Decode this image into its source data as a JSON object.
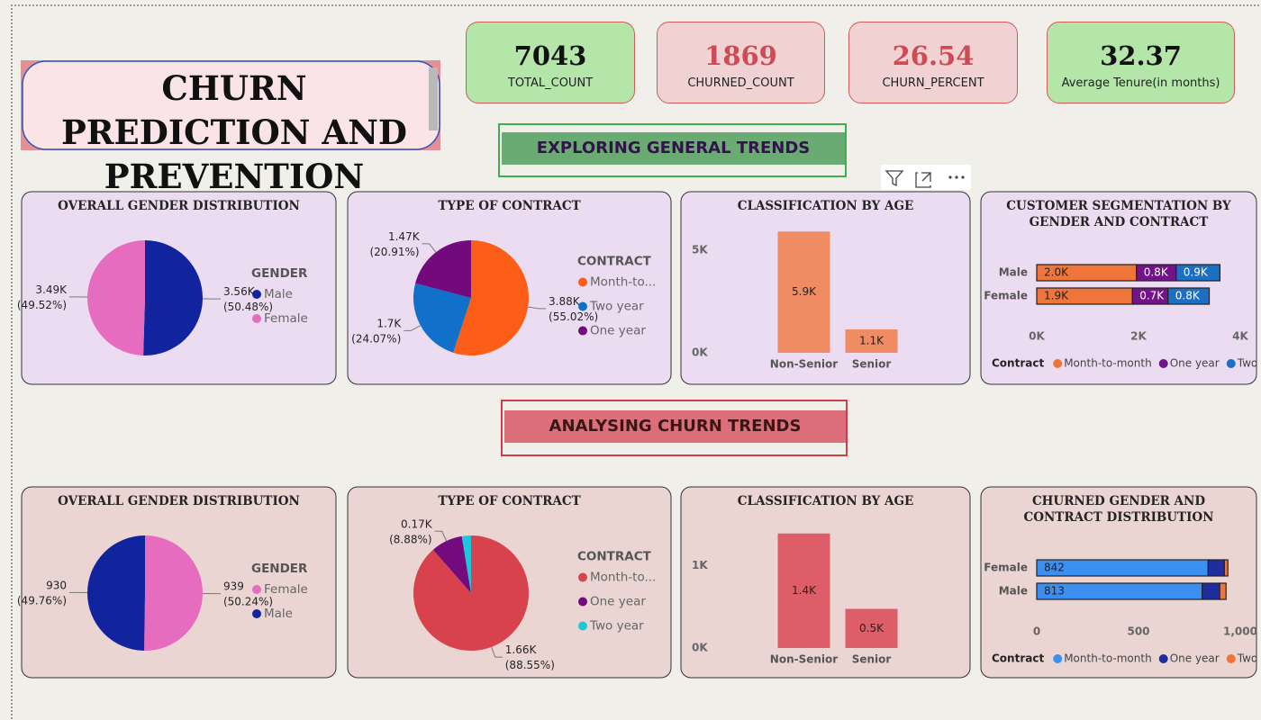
{
  "header": {
    "title": "CHURN PREDICTION AND PREVENTION"
  },
  "kpis": [
    {
      "value": 7043,
      "label": "TOTAL_COUNT"
    },
    {
      "value": 1869,
      "label": "CHURNED_COUNT"
    },
    {
      "value": 26.54,
      "label": "CHURN_PERCENT"
    },
    {
      "value": 32.37,
      "label": "Average Tenure(in months)"
    }
  ],
  "sections": [
    "EXPLORING GENERAL TRENDS",
    "ANALYSING CHURN TRENDS"
  ],
  "chart_data": [
    {
      "type": "pie",
      "title": "OVERALL GENDER DISTRIBUTION",
      "legend_title": "GENDER",
      "categories": [
        "Male",
        "Female"
      ],
      "values": [
        3555,
        3488
      ],
      "colors": [
        "#12239e",
        "#e66cbf"
      ],
      "value_labels": [
        "3.56K (50.48%)",
        "3.49K (49.52%)"
      ]
    },
    {
      "type": "pie",
      "title": "TYPE OF CONTRACT",
      "legend_title": "CONTRACT",
      "categories": [
        "Month-to...",
        "Two year",
        "One year"
      ],
      "values": [
        3875,
        1695,
        1473
      ],
      "colors": [
        "#fc5d17",
        "#1170c9",
        "#720a7e"
      ],
      "value_labels": [
        "3.88K (55.02%)",
        "1.7K (24.07%)",
        "1.47K (20.91%)"
      ]
    },
    {
      "type": "bar",
      "title": "CLASSIFICATION BY AGE",
      "categories": [
        "Non-Senior",
        "Senior"
      ],
      "values": [
        5901,
        1142
      ],
      "value_labels": [
        "5.9K",
        "1.1K"
      ],
      "color": "#ef8c63",
      "ylim": [
        0,
        6000
      ],
      "yticks": [
        {
          "value": 0,
          "label": "0K"
        },
        {
          "value": 5000,
          "label": "5K"
        }
      ]
    },
    {
      "type": "bar",
      "orientation": "horizontal",
      "stacked": true,
      "title": "CUSTOMER SEGMENTATION BY GENDER AND CONTRACT",
      "legend_title": "Contract",
      "categories": [
        "Male",
        "Female"
      ],
      "series": [
        {
          "name": "Month-to-month",
          "color": "#f0753b",
          "values": [
            1960,
            1880
          ],
          "value_labels": [
            "2.0K",
            "1.9K"
          ]
        },
        {
          "name": "One year",
          "color": "#73138a",
          "values": [
            780,
            700
          ],
          "value_labels": [
            "0.8K",
            "0.7K"
          ]
        },
        {
          "name": "Two year",
          "color": "#1d6fc4",
          "values": [
            860,
            810
          ],
          "value_labels": [
            "0.9K",
            "0.8K"
          ]
        }
      ],
      "xlim": [
        0,
        4000
      ],
      "xticks": [
        {
          "value": 0,
          "label": "0K"
        },
        {
          "value": 2000,
          "label": "2K"
        },
        {
          "value": 4000,
          "label": "4K"
        }
      ]
    },
    {
      "type": "pie",
      "title": "OVERALL GENDER DISTRIBUTION",
      "legend_title": "GENDER",
      "categories": [
        "Female",
        "Male"
      ],
      "values": [
        939,
        930
      ],
      "colors": [
        "#e66cbf",
        "#12239e"
      ],
      "value_labels": [
        "939 (50.24%)",
        "930 (49.76%)"
      ]
    },
    {
      "type": "pie",
      "title": "TYPE OF CONTRACT",
      "legend_title": "CONTRACT",
      "categories": [
        "Month-to...",
        "One year",
        "Two year"
      ],
      "values": [
        1655,
        166,
        48
      ],
      "colors": [
        "#d8424d",
        "#730a7e",
        "#1bc7db"
      ],
      "value_labels": [
        "1.66K (88.55%)",
        "0.17K (8.88%)",
        null
      ]
    },
    {
      "type": "bar",
      "title": "CLASSIFICATION BY AGE",
      "categories": [
        "Non-Senior",
        "Senior"
      ],
      "values": [
        1393,
        476
      ],
      "value_labels": [
        "1.4K",
        "0.5K"
      ],
      "color": "#dd5e69",
      "ylim": [
        0,
        1500
      ],
      "yticks": [
        {
          "value": 0,
          "label": "0K"
        },
        {
          "value": 1000,
          "label": "1K"
        }
      ]
    },
    {
      "type": "bar",
      "orientation": "horizontal",
      "stacked": true,
      "title": "CHURNED GENDER AND CONTRACT DISTRIBUTION",
      "legend_title": "Contract",
      "categories": [
        "Female",
        "Male"
      ],
      "series": [
        {
          "name": "Month-to-month",
          "color": "#3b8ff0",
          "values": [
            842,
            813
          ]
        },
        {
          "name": "One year",
          "color": "#1f2e9e",
          "values": [
            80,
            86
          ],
          "value_labels": [
            null,
            null
          ]
        },
        {
          "name": "Two year",
          "color": "#f0753b",
          "values": [
            17,
            31
          ],
          "value_labels": [
            null,
            null
          ]
        }
      ],
      "xlim": [
        0,
        1000
      ],
      "xticks": [
        0,
        500,
        {
          "value": 1000,
          "label": "1,000"
        }
      ]
    }
  ]
}
